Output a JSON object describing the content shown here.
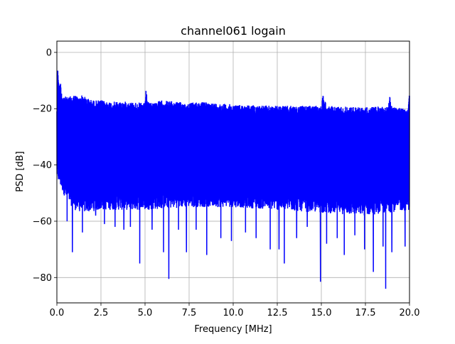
{
  "chart_data": {
    "type": "line",
    "title": "channel061 logain",
    "xlabel": "Frequency [MHz]",
    "ylabel": "PSD [dB]",
    "xlim": [
      0,
      20
    ],
    "ylim": [
      -89,
      4
    ],
    "xticks": [
      0,
      2.5,
      5,
      7.5,
      10,
      12.5,
      15,
      17.5,
      20
    ],
    "xtick_labels": [
      "0.0",
      "2.5",
      "5.0",
      "7.5",
      "10.0",
      "12.5",
      "15.0",
      "17.5",
      "20.0"
    ],
    "yticks": [
      0,
      -20,
      -40,
      -60,
      -80
    ],
    "ytick_labels": [
      "0",
      "−20",
      "−40",
      "−60",
      "−80"
    ],
    "grid": true,
    "line_color": "#0000ff",
    "series": [
      {
        "upper_envelope": [
          [
            0.0,
            -19
          ],
          [
            0.05,
            -4
          ],
          [
            0.12,
            -12
          ],
          [
            0.2,
            -10
          ],
          [
            0.3,
            -15
          ],
          [
            0.6,
            -16
          ],
          [
            1.0,
            -15
          ],
          [
            1.3,
            -16
          ],
          [
            1.35,
            -15
          ],
          [
            2.0,
            -17
          ],
          [
            2.5,
            -17
          ],
          [
            3.0,
            -17.5
          ],
          [
            4.0,
            -17.5
          ],
          [
            5.0,
            -18
          ],
          [
            5.05,
            -13.5
          ],
          [
            5.2,
            -18
          ],
          [
            6.0,
            -17
          ],
          [
            7.5,
            -18
          ],
          [
            8.0,
            -17.5
          ],
          [
            10.0,
            -18.5
          ],
          [
            12.5,
            -19
          ],
          [
            15.0,
            -19
          ],
          [
            15.1,
            -14.5
          ],
          [
            15.3,
            -19
          ],
          [
            17.5,
            -19.5
          ],
          [
            18.8,
            -19
          ],
          [
            18.9,
            -15
          ],
          [
            19.0,
            -19.5
          ],
          [
            19.9,
            -19.5
          ],
          [
            20.0,
            -14
          ]
        ],
        "lower_envelope": [
          [
            0.0,
            -45
          ],
          [
            0.5,
            -52
          ],
          [
            1.0,
            -56
          ],
          [
            1.5,
            -57
          ],
          [
            2.5,
            -56
          ],
          [
            5.0,
            -56
          ],
          [
            7.5,
            -55
          ],
          [
            10.0,
            -55
          ],
          [
            12.5,
            -56
          ],
          [
            15.0,
            -57
          ],
          [
            17.5,
            -58
          ],
          [
            20.0,
            -56
          ]
        ],
        "dips": [
          [
            0.58,
            -60
          ],
          [
            0.88,
            -71
          ],
          [
            1.45,
            -64
          ],
          [
            2.2,
            -58
          ],
          [
            2.7,
            -61
          ],
          [
            3.3,
            -62
          ],
          [
            3.8,
            -63
          ],
          [
            4.17,
            -62
          ],
          [
            4.7,
            -75
          ],
          [
            5.4,
            -63
          ],
          [
            6.05,
            -71
          ],
          [
            6.35,
            -80.5
          ],
          [
            6.9,
            -63
          ],
          [
            7.35,
            -71
          ],
          [
            7.9,
            -63
          ],
          [
            8.5,
            -72
          ],
          [
            9.3,
            -66
          ],
          [
            9.9,
            -67
          ],
          [
            10.7,
            -64
          ],
          [
            11.3,
            -66
          ],
          [
            12.1,
            -70
          ],
          [
            12.6,
            -70
          ],
          [
            12.9,
            -75
          ],
          [
            13.6,
            -66
          ],
          [
            14.2,
            -62
          ],
          [
            14.95,
            -81.5
          ],
          [
            15.3,
            -68
          ],
          [
            15.9,
            -66
          ],
          [
            16.3,
            -72
          ],
          [
            16.9,
            -65
          ],
          [
            17.45,
            -70
          ],
          [
            17.95,
            -78
          ],
          [
            18.5,
            -69
          ],
          [
            18.65,
            -84
          ],
          [
            19.0,
            -71
          ],
          [
            19.75,
            -69
          ]
        ]
      }
    ]
  }
}
